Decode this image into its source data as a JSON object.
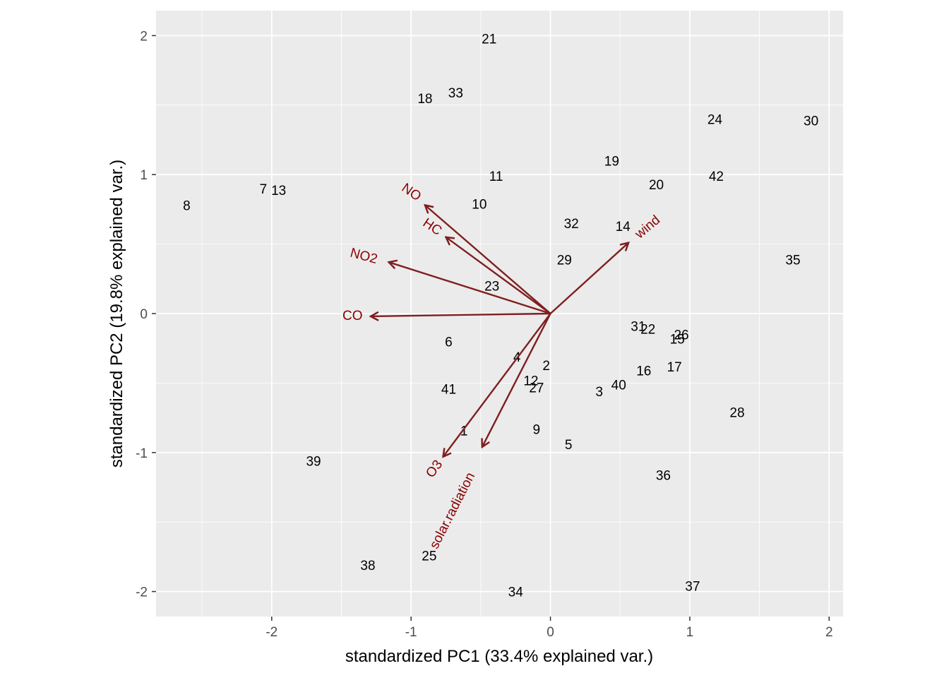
{
  "chart_data": {
    "type": "scatter",
    "subtype": "pca-biplot",
    "xlabel": "standardized PC1 (33.4% explained var.)",
    "ylabel": "standardized PC2 (19.8% explained var.)",
    "xlim": [
      -2.83,
      2.1
    ],
    "ylim": [
      -2.18,
      2.18
    ],
    "x_ticks": [
      -2,
      -1,
      0,
      1,
      2
    ],
    "x_tick_labels": [
      "-2",
      "-1",
      "0",
      "1",
      "2"
    ],
    "y_ticks": [
      -2,
      -1,
      0,
      1,
      2
    ],
    "y_tick_labels": [
      "-2",
      "-1",
      "0",
      "1",
      "2"
    ],
    "grid": true,
    "points": [
      {
        "label": "1",
        "x": -0.62,
        "y": -0.84
      },
      {
        "label": "2",
        "x": -0.03,
        "y": -0.37
      },
      {
        "label": "3",
        "x": 0.35,
        "y": -0.56
      },
      {
        "label": "4",
        "x": -0.24,
        "y": -0.31
      },
      {
        "label": "5",
        "x": 0.13,
        "y": -0.94
      },
      {
        "label": "6",
        "x": -0.73,
        "y": -0.2
      },
      {
        "label": "7",
        "x": -2.06,
        "y": 0.9
      },
      {
        "label": "8",
        "x": -2.61,
        "y": 0.78
      },
      {
        "label": "9",
        "x": -0.1,
        "y": -0.83
      },
      {
        "label": "10",
        "x": -0.51,
        "y": 0.79
      },
      {
        "label": "11",
        "x": -0.39,
        "y": 0.99
      },
      {
        "label": "12",
        "x": -0.14,
        "y": -0.48
      },
      {
        "label": "13",
        "x": -1.95,
        "y": 0.89
      },
      {
        "label": "14",
        "x": 0.52,
        "y": 0.63
      },
      {
        "label": "15",
        "x": 0.91,
        "y": -0.18
      },
      {
        "label": "16",
        "x": 0.67,
        "y": -0.41
      },
      {
        "label": "17",
        "x": 0.89,
        "y": -0.38
      },
      {
        "label": "18",
        "x": -0.9,
        "y": 1.55
      },
      {
        "label": "19",
        "x": 0.44,
        "y": 1.1
      },
      {
        "label": "20",
        "x": 0.76,
        "y": 0.93
      },
      {
        "label": "21",
        "x": -0.44,
        "y": 1.98
      },
      {
        "label": "22",
        "x": 0.7,
        "y": -0.11
      },
      {
        "label": "23",
        "x": -0.42,
        "y": 0.2
      },
      {
        "label": "24",
        "x": 1.18,
        "y": 1.4
      },
      {
        "label": "25",
        "x": -0.87,
        "y": -1.74
      },
      {
        "label": "26",
        "x": 0.94,
        "y": -0.15
      },
      {
        "label": "27",
        "x": -0.1,
        "y": -0.53
      },
      {
        "label": "28",
        "x": 1.34,
        "y": -0.71
      },
      {
        "label": "29",
        "x": 0.1,
        "y": 0.39
      },
      {
        "label": "30",
        "x": 1.87,
        "y": 1.39
      },
      {
        "label": "31",
        "x": 0.63,
        "y": -0.09
      },
      {
        "label": "32",
        "x": 0.15,
        "y": 0.65
      },
      {
        "label": "33",
        "x": -0.68,
        "y": 1.59
      },
      {
        "label": "34",
        "x": -0.25,
        "y": -2.0
      },
      {
        "label": "35",
        "x": 1.74,
        "y": 0.39
      },
      {
        "label": "36",
        "x": 0.81,
        "y": -1.16
      },
      {
        "label": "37",
        "x": 1.02,
        "y": -1.96
      },
      {
        "label": "38",
        "x": -1.31,
        "y": -1.81
      },
      {
        "label": "39",
        "x": -1.7,
        "y": -1.06
      },
      {
        "label": "40",
        "x": 0.49,
        "y": -0.51
      },
      {
        "label": "41",
        "x": -0.73,
        "y": -0.54
      },
      {
        "label": "42",
        "x": 1.19,
        "y": 0.99
      }
    ],
    "loadings": [
      {
        "name": "NO",
        "x": -0.9,
        "y": 0.78,
        "label_x": -1.0,
        "label_y": 0.87,
        "angle": 35
      },
      {
        "name": "HC",
        "x": -0.75,
        "y": 0.55,
        "label_x": -0.85,
        "label_y": 0.62,
        "angle": 34
      },
      {
        "name": "NO2",
        "x": -1.16,
        "y": 0.37,
        "label_x": -1.34,
        "label_y": 0.41,
        "angle": 15
      },
      {
        "name": "CO",
        "x": -1.29,
        "y": -0.02,
        "label_x": -1.42,
        "label_y": -0.02,
        "angle": 0
      },
      {
        "name": "wind",
        "x": 0.56,
        "y": 0.51,
        "label_x": 0.7,
        "label_y": 0.62,
        "angle": -40
      },
      {
        "name": "O3",
        "x": -0.77,
        "y": -1.03,
        "label_x": -0.83,
        "label_y": -1.12,
        "angle": -54
      },
      {
        "name": "solar.radiation",
        "x": -0.49,
        "y": -0.96,
        "label_x": -0.7,
        "label_y": -1.42,
        "angle": -63
      }
    ],
    "arrow_color": "#7f1f1f",
    "label_color": "#8b0000",
    "panel_color": "#ebebeb",
    "grid_color": "#ffffff"
  }
}
